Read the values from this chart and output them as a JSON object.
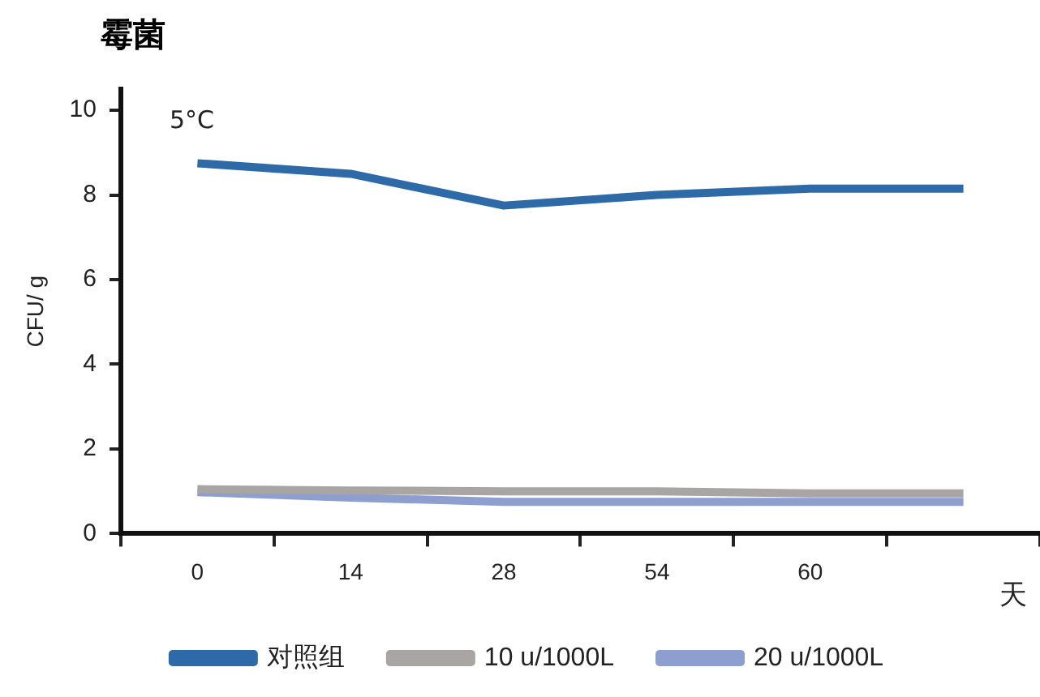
{
  "chart_data": {
    "type": "line",
    "title": "霉菌",
    "ylabel": "CFU/ g",
    "xlabel": "天",
    "annotations": [
      "5°C"
    ],
    "categories": [
      "0",
      "14",
      "28",
      "54",
      "60",
      null
    ],
    "ylim": [
      0,
      10.5
    ],
    "yticks": [
      0,
      2,
      4,
      6,
      8,
      10
    ],
    "series": [
      {
        "name": "对照组",
        "color": "#2e6aa8",
        "values": [
          8.75,
          8.5,
          7.75,
          8.0,
          8.15,
          8.15
        ]
      },
      {
        "name": "10 u/1000L",
        "color": "#a8a5a2",
        "values": [
          1.05,
          1.02,
          1.0,
          1.0,
          0.95,
          0.95
        ]
      },
      {
        "name": "20 u/1000L",
        "color": "#8d9fcf",
        "values": [
          0.98,
          0.85,
          0.75,
          0.75,
          0.75,
          0.75
        ]
      }
    ],
    "grid": false,
    "legend": "bottom",
    "marker": "none",
    "line_style": "solid"
  }
}
